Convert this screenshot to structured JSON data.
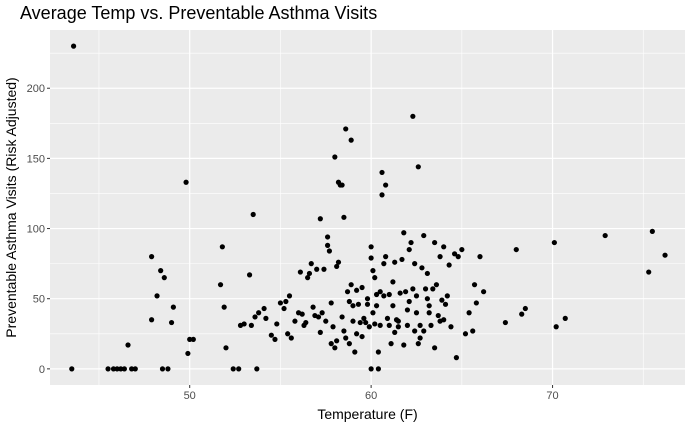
{
  "chart_data": {
    "type": "scatter",
    "title": "Average Temp vs. Preventable Asthma Visits",
    "xlabel": "Temperature (F)",
    "ylabel": "Preventable Asthma Visits (Risk Adjusted)",
    "xlim": [
      42.3,
      77.3
    ],
    "ylim": [
      -11.5,
      241.5
    ],
    "xticks": [
      50,
      60,
      70
    ],
    "yticks": [
      0,
      50,
      100,
      150,
      200
    ],
    "grid": true,
    "legend": "none",
    "colors": {
      "panel": "#ebebeb",
      "grid": "#ffffff",
      "point": "#000000"
    },
    "points": [
      [
        43.6,
        230
      ],
      [
        43.5,
        0
      ],
      [
        45.5,
        0
      ],
      [
        45.8,
        0
      ],
      [
        46.0,
        0
      ],
      [
        46.2,
        0
      ],
      [
        46.4,
        0
      ],
      [
        46.6,
        17
      ],
      [
        46.8,
        0
      ],
      [
        47.0,
        0
      ],
      [
        47.9,
        80
      ],
      [
        47.9,
        35
      ],
      [
        48.2,
        52
      ],
      [
        48.4,
        70
      ],
      [
        48.5,
        0
      ],
      [
        48.6,
        65
      ],
      [
        48.8,
        0
      ],
      [
        49.0,
        33
      ],
      [
        49.1,
        44
      ],
      [
        49.8,
        133
      ],
      [
        49.9,
        11
      ],
      [
        50.0,
        21
      ],
      [
        50.2,
        21
      ],
      [
        51.7,
        60
      ],
      [
        51.8,
        87
      ],
      [
        52.0,
        15
      ],
      [
        51.9,
        44
      ],
      [
        52.4,
        0
      ],
      [
        52.7,
        0
      ],
      [
        52.8,
        31
      ],
      [
        53.0,
        32
      ],
      [
        53.3,
        67
      ],
      [
        53.4,
        31
      ],
      [
        53.5,
        110
      ],
      [
        53.6,
        37
      ],
      [
        53.7,
        0
      ],
      [
        53.8,
        40
      ],
      [
        54.1,
        43
      ],
      [
        54.2,
        36
      ],
      [
        54.5,
        24
      ],
      [
        54.7,
        21
      ],
      [
        54.8,
        32
      ],
      [
        55.0,
        47
      ],
      [
        55.2,
        43
      ],
      [
        55.3,
        48
      ],
      [
        55.4,
        25
      ],
      [
        55.5,
        52
      ],
      [
        55.6,
        22
      ],
      [
        55.8,
        34
      ],
      [
        56.0,
        40
      ],
      [
        56.1,
        69
      ],
      [
        56.2,
        39
      ],
      [
        56.3,
        31
      ],
      [
        56.4,
        33
      ],
      [
        56.5,
        65
      ],
      [
        56.6,
        68
      ],
      [
        56.7,
        75
      ],
      [
        56.8,
        44
      ],
      [
        56.9,
        38
      ],
      [
        57.0,
        71
      ],
      [
        57.1,
        37
      ],
      [
        57.2,
        107
      ],
      [
        57.2,
        26
      ],
      [
        57.3,
        40
      ],
      [
        57.4,
        71
      ],
      [
        57.5,
        34
      ],
      [
        57.6,
        88
      ],
      [
        57.6,
        94
      ],
      [
        57.7,
        84
      ],
      [
        57.8,
        47
      ],
      [
        57.8,
        18
      ],
      [
        57.9,
        30
      ],
      [
        58.0,
        15
      ],
      [
        58.0,
        151
      ],
      [
        58.1,
        73
      ],
      [
        58.1,
        20
      ],
      [
        58.2,
        76
      ],
      [
        58.2,
        133
      ],
      [
        58.3,
        131
      ],
      [
        58.4,
        131
      ],
      [
        58.4,
        37
      ],
      [
        58.5,
        27
      ],
      [
        58.5,
        108
      ],
      [
        58.6,
        171
      ],
      [
        58.6,
        22
      ],
      [
        58.7,
        55
      ],
      [
        58.8,
        18
      ],
      [
        58.8,
        48
      ],
      [
        58.9,
        163
      ],
      [
        58.9,
        60
      ],
      [
        59.0,
        45
      ],
      [
        59.0,
        34
      ],
      [
        59.1,
        12
      ],
      [
        59.2,
        25
      ],
      [
        59.2,
        56
      ],
      [
        59.3,
        46
      ],
      [
        59.4,
        33
      ],
      [
        59.5,
        58
      ],
      [
        59.5,
        23
      ],
      [
        59.6,
        36
      ],
      [
        59.7,
        33
      ],
      [
        59.8,
        46
      ],
      [
        59.8,
        50
      ],
      [
        59.9,
        30
      ],
      [
        60.0,
        87
      ],
      [
        60.0,
        0
      ],
      [
        60.0,
        79
      ],
      [
        60.1,
        70
      ],
      [
        60.1,
        40
      ],
      [
        60.2,
        65
      ],
      [
        60.2,
        32
      ],
      [
        60.3,
        53
      ],
      [
        60.3,
        45
      ],
      [
        60.4,
        12
      ],
      [
        60.4,
        0
      ],
      [
        60.5,
        55
      ],
      [
        60.5,
        31
      ],
      [
        60.6,
        140
      ],
      [
        60.6,
        124
      ],
      [
        60.7,
        75
      ],
      [
        60.7,
        52
      ],
      [
        60.8,
        131
      ],
      [
        60.8,
        80
      ],
      [
        60.9,
        36
      ],
      [
        61.0,
        31
      ],
      [
        61.0,
        53
      ],
      [
        61.1,
        18
      ],
      [
        61.2,
        45
      ],
      [
        61.2,
        62
      ],
      [
        61.3,
        76
      ],
      [
        61.3,
        26
      ],
      [
        61.4,
        35
      ],
      [
        61.5,
        34
      ],
      [
        61.5,
        30
      ],
      [
        61.6,
        54
      ],
      [
        61.7,
        78
      ],
      [
        61.8,
        97
      ],
      [
        61.8,
        17
      ],
      [
        61.9,
        55
      ],
      [
        62.0,
        42
      ],
      [
        62.0,
        31
      ],
      [
        62.1,
        85
      ],
      [
        62.1,
        48
      ],
      [
        62.2,
        90
      ],
      [
        62.3,
        57
      ],
      [
        62.3,
        180
      ],
      [
        62.4,
        75
      ],
      [
        62.4,
        27
      ],
      [
        62.5,
        52
      ],
      [
        62.5,
        40
      ],
      [
        62.6,
        144
      ],
      [
        62.6,
        18
      ],
      [
        62.7,
        31
      ],
      [
        62.7,
        22
      ],
      [
        62.8,
        72
      ],
      [
        62.9,
        95
      ],
      [
        62.9,
        27
      ],
      [
        63.0,
        57
      ],
      [
        63.1,
        50
      ],
      [
        63.1,
        68
      ],
      [
        63.2,
        45
      ],
      [
        63.2,
        40
      ],
      [
        63.3,
        31
      ],
      [
        63.4,
        57
      ],
      [
        63.5,
        90
      ],
      [
        63.5,
        15
      ],
      [
        63.6,
        60
      ],
      [
        63.7,
        38
      ],
      [
        63.8,
        34
      ],
      [
        63.8,
        80
      ],
      [
        63.9,
        49
      ],
      [
        64.0,
        87
      ],
      [
        64.0,
        35
      ],
      [
        64.1,
        46
      ],
      [
        64.2,
        52
      ],
      [
        64.3,
        74
      ],
      [
        64.4,
        30
      ],
      [
        64.6,
        82
      ],
      [
        64.7,
        8
      ],
      [
        64.8,
        80
      ],
      [
        65.0,
        85
      ],
      [
        65.2,
        25
      ],
      [
        65.4,
        40
      ],
      [
        65.6,
        27
      ],
      [
        65.7,
        60
      ],
      [
        65.8,
        47
      ],
      [
        66.0,
        80
      ],
      [
        66.2,
        55
      ],
      [
        67.4,
        33
      ],
      [
        68.0,
        85
      ],
      [
        68.3,
        39
      ],
      [
        68.5,
        43
      ],
      [
        70.1,
        90
      ],
      [
        70.2,
        30
      ],
      [
        70.7,
        36
      ],
      [
        72.9,
        95
      ],
      [
        75.3,
        69
      ],
      [
        75.5,
        98
      ],
      [
        76.2,
        81
      ]
    ]
  }
}
